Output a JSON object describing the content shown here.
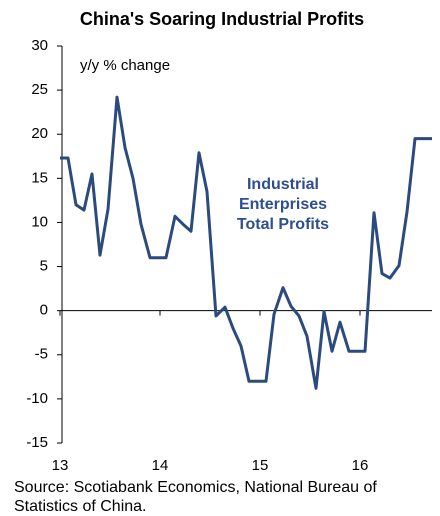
{
  "chart_data": {
    "type": "line",
    "title": "China's Soaring Industrial Profits",
    "y_label": "y/y % change",
    "annotation": [
      "Industrial",
      "Enterprises",
      "Total Profits"
    ],
    "source": "Source: Scotiabank Economics, National Bureau of Statistics of China.",
    "x": [
      13.0,
      13.08,
      13.16,
      13.24,
      13.32,
      13.4,
      13.48,
      13.57,
      13.65,
      13.73,
      13.81,
      13.9,
      13.98,
      14.06,
      14.15,
      14.23,
      14.31,
      14.39,
      14.47,
      14.56,
      14.65,
      14.73,
      14.81,
      14.89,
      14.98,
      15.06,
      15.14,
      15.23,
      15.31,
      15.39,
      15.47,
      15.56,
      15.64,
      15.72,
      15.8,
      15.89,
      15.97,
      16.05,
      16.14,
      16.22,
      16.3,
      16.39,
      16.47,
      16.55,
      16.72
    ],
    "series": [
      {
        "name": "Industrial Enterprises Total Profits",
        "color": "#2b4a7e",
        "values": [
          17.3,
          17.3,
          12,
          11.4,
          15.5,
          6.3,
          11.5,
          24.2,
          18.5,
          15,
          9.8,
          6,
          6,
          6,
          10.7,
          9.8,
          9,
          17.9,
          13.5,
          -0.6,
          0.4,
          -2,
          -4,
          -8,
          -8,
          -8,
          -0.4,
          2.6,
          0.5,
          -0.6,
          -2.9,
          -8.8,
          -0.1,
          -4.6,
          -1.3,
          -4.6,
          -4.6,
          -4.6,
          11.1,
          4.2,
          3.7,
          5.1,
          11.2,
          19.5,
          19.5
        ]
      }
    ],
    "xlim": [
      13,
      16.72
    ],
    "xticks": [
      13,
      14,
      15,
      16
    ],
    "ylim": [
      -15,
      30
    ],
    "yticks": [
      -15,
      -10,
      -5,
      0,
      5,
      10,
      15,
      20,
      25,
      30
    ],
    "annotation_color": "#2e4e8f"
  }
}
